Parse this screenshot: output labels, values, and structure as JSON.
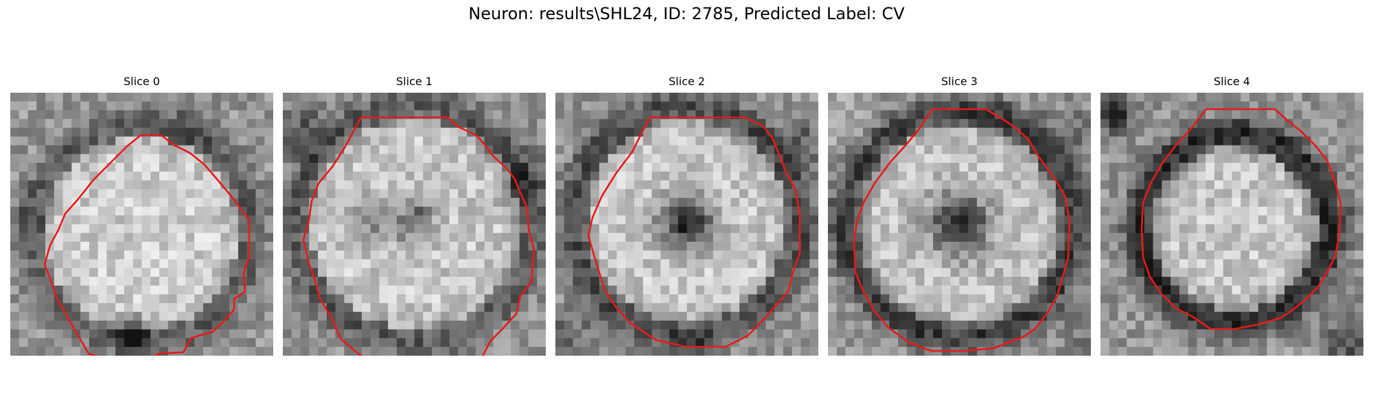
{
  "figure": {
    "title": "Neuron: results\\SHL24, ID: 2785, Predicted Label: CV"
  },
  "panels": [
    {
      "title": "Slice 0"
    },
    {
      "title": "Slice 1"
    },
    {
      "title": "Slice 2"
    },
    {
      "title": "Slice 3"
    },
    {
      "title": "Slice 4"
    }
  ],
  "colors": {
    "contour": "#e8191b",
    "background": "#ffffff"
  }
}
